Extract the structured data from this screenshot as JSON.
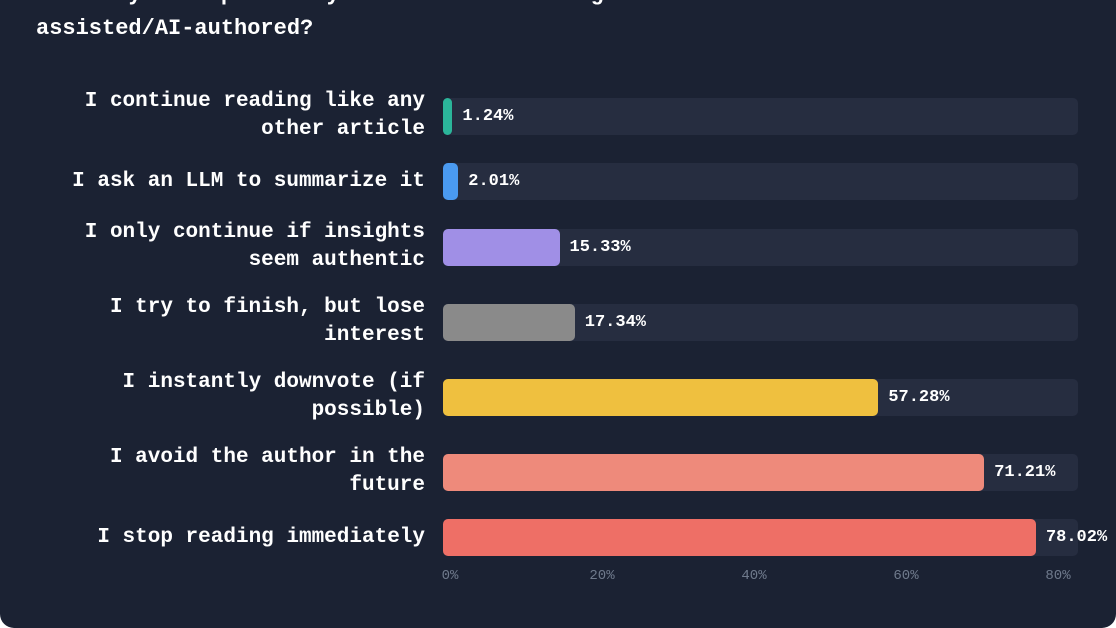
{
  "chart_data": {
    "type": "bar",
    "orientation": "horizontal",
    "title": "How do you respond if you think a tech blog is AI-assisted/AI-authored?",
    "categories": [
      "I continue reading like any other article",
      "I ask an LLM to summarize it",
      "I only continue if insights seem authentic",
      "I try to finish, but lose interest",
      "I instantly downvote (if possible)",
      "I avoid the author in the future",
      "I stop reading immediately"
    ],
    "values": [
      1.24,
      2.01,
      15.33,
      17.34,
      57.28,
      71.21,
      78.02
    ],
    "value_labels": [
      "1.24%",
      "2.01%",
      "15.33%",
      "17.34%",
      "57.28%",
      "71.21%",
      "78.02%"
    ],
    "colors": [
      "#2bb59a",
      "#4a9af0",
      "#a08fe6",
      "#8a8a8a",
      "#efc03f",
      "#ee8a7b",
      "#ee6f66"
    ],
    "xlim": [
      0,
      80
    ],
    "xticks": [
      {
        "value": 0,
        "label": "0%"
      },
      {
        "value": 20,
        "label": "20%"
      },
      {
        "value": 40,
        "label": "40%"
      },
      {
        "value": 60,
        "label": "60%"
      },
      {
        "value": 80,
        "label": "80%"
      }
    ]
  }
}
